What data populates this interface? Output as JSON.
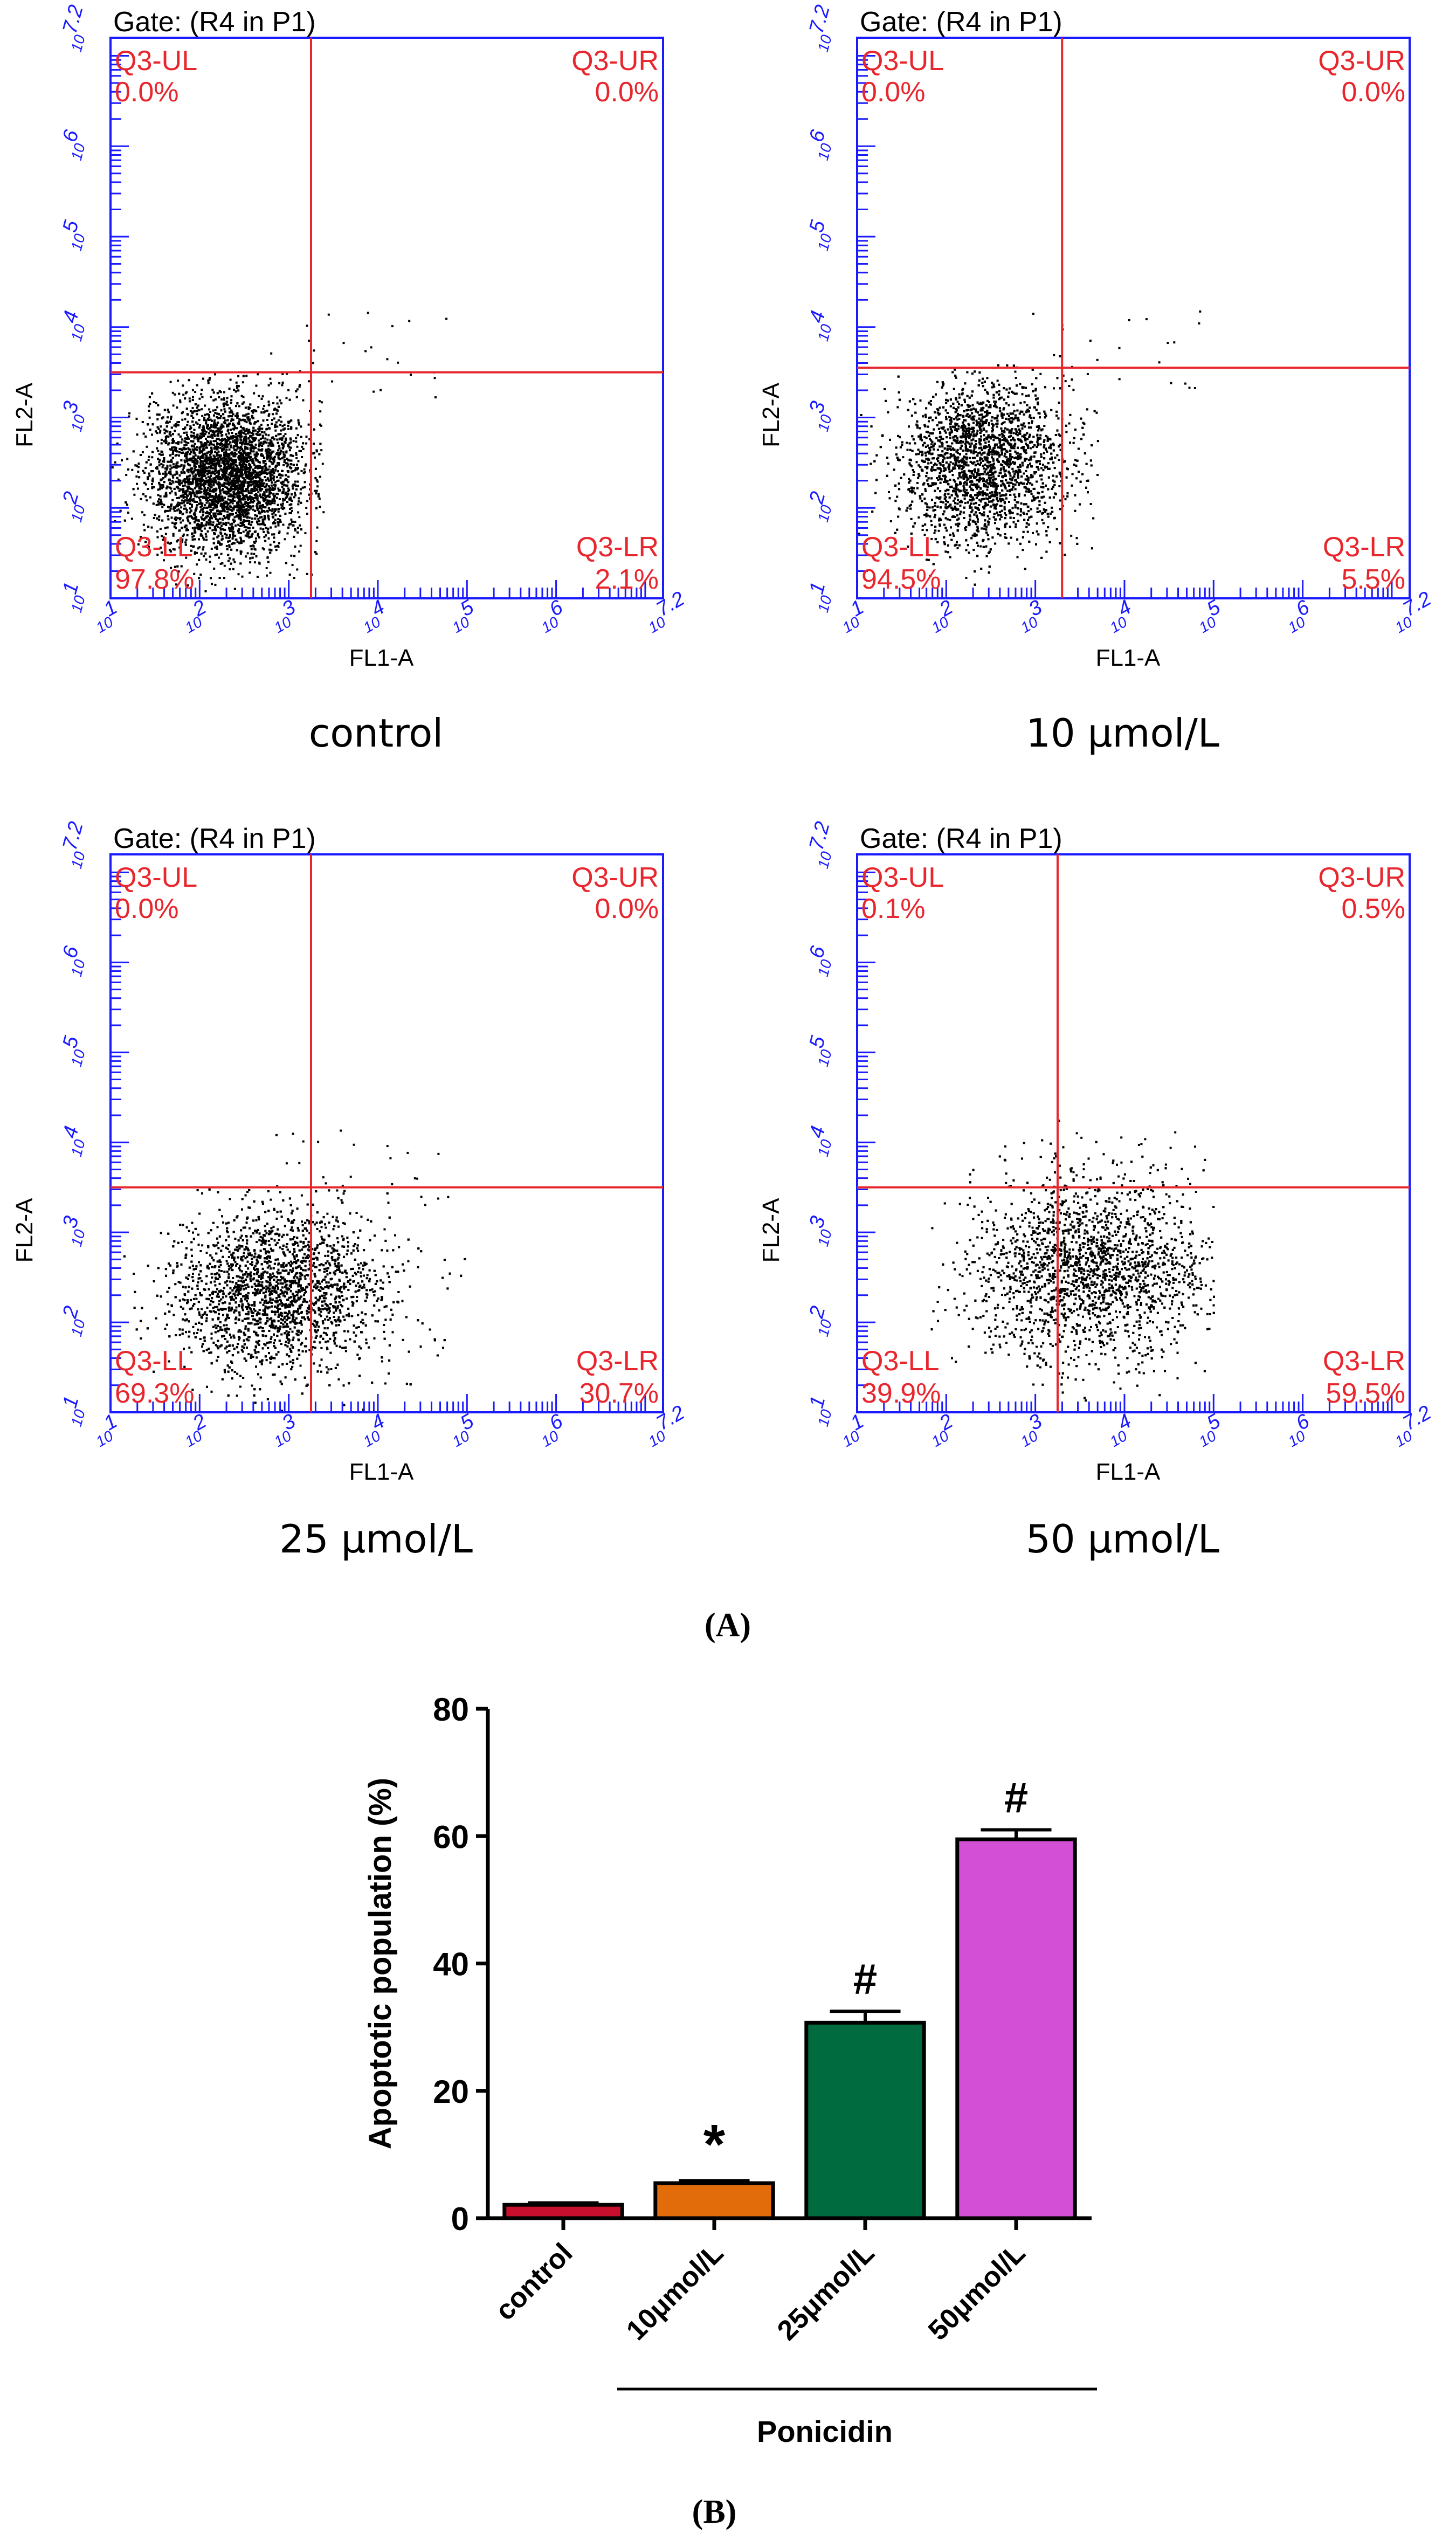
{
  "panel_a_label": "(A)",
  "panel_b_label": "(B)",
  "colors": {
    "flow_axis": "#1a1aff",
    "quadrant": "#e8262e",
    "text": "#000000",
    "bar_outline": "#000000"
  },
  "chart_data": [
    {
      "type": "scatter",
      "title": "Gate: (R4 in P1)",
      "caption": "control",
      "xlabel": "FL1-A",
      "ylabel": "FL2-A",
      "scale": "log10",
      "xlim": [
        1,
        7.2
      ],
      "ylim": [
        1,
        7.2
      ],
      "x_ticks": [
        "1",
        "2",
        "3",
        "4",
        "5",
        "6",
        "7.2"
      ],
      "y_ticks": [
        "1",
        "2",
        "3",
        "4",
        "5",
        "6",
        "7.2"
      ],
      "tick_base": "10",
      "quadrant_gate": {
        "x": 3.25,
        "y": 3.5
      },
      "quadrants": [
        {
          "name": "Q3-UL",
          "percent": "0.0%"
        },
        {
          "name": "Q3-UR",
          "percent": "0.0%"
        },
        {
          "name": "Q3-LL",
          "percent": "97.8%"
        },
        {
          "name": "Q3-LR",
          "percent": "2.1%"
        }
      ],
      "cluster": {
        "x_center": 2.3,
        "y_center": 2.35,
        "x_spread": 0.42,
        "y_spread": 0.42,
        "x_min": 1.0,
        "x_max": 3.4,
        "y_min": 1.0,
        "y_max": 3.5,
        "density": 1.0,
        "tail": 0.02
      }
    },
    {
      "type": "scatter",
      "title": "Gate: (R4 in P1)",
      "caption": "10 µmol/L",
      "xlabel": "FL1-A",
      "ylabel": "FL2-A",
      "scale": "log10",
      "xlim": [
        1,
        7.2
      ],
      "ylim": [
        1,
        7.2
      ],
      "x_ticks": [
        "1",
        "2",
        "3",
        "4",
        "5",
        "6",
        "7.2"
      ],
      "y_ticks": [
        "1",
        "2",
        "3",
        "4",
        "5",
        "6",
        "7.2"
      ],
      "tick_base": "10",
      "quadrant_gate": {
        "x": 3.3,
        "y": 3.55
      },
      "quadrants": [
        {
          "name": "Q3-UL",
          "percent": "0.0%"
        },
        {
          "name": "Q3-UR",
          "percent": "0.0%"
        },
        {
          "name": "Q3-LL",
          "percent": "94.5%"
        },
        {
          "name": "Q3-LR",
          "percent": "5.5%"
        }
      ],
      "cluster": {
        "x_center": 2.4,
        "y_center": 2.5,
        "x_spread": 0.45,
        "y_spread": 0.45,
        "x_min": 1.0,
        "x_max": 3.7,
        "y_min": 1.0,
        "y_max": 3.6,
        "density": 1.0,
        "tail": 0.05
      }
    },
    {
      "type": "scatter",
      "title": "Gate: (R4 in P1)",
      "caption": "25 µmol/L",
      "xlabel": "FL1-A",
      "ylabel": "FL2-A",
      "scale": "log10",
      "xlim": [
        1,
        7.2
      ],
      "ylim": [
        1,
        7.2
      ],
      "x_ticks": [
        "1",
        "2",
        "3",
        "4",
        "5",
        "6",
        "7.2"
      ],
      "y_ticks": [
        "1",
        "2",
        "3",
        "4",
        "5",
        "6",
        "7.2"
      ],
      "tick_base": "10",
      "quadrant_gate": {
        "x": 3.25,
        "y": 3.5
      },
      "quadrants": [
        {
          "name": "Q3-UL",
          "percent": "0.0%"
        },
        {
          "name": "Q3-UR",
          "percent": "0.0%"
        },
        {
          "name": "Q3-LL",
          "percent": "69.3%"
        },
        {
          "name": "Q3-LR",
          "percent": "30.7%"
        }
      ],
      "cluster": {
        "x_center": 2.8,
        "y_center": 2.35,
        "x_spread": 0.55,
        "y_spread": 0.45,
        "x_min": 1.0,
        "x_max": 5.0,
        "y_min": 1.0,
        "y_max": 3.6,
        "density": 1.0,
        "tail": 0.15
      }
    },
    {
      "type": "scatter",
      "title": "Gate: (R4 in P1)",
      "caption": "50 µmol/L",
      "xlabel": "FL1-A",
      "ylabel": "FL2-A",
      "scale": "log10",
      "xlim": [
        1,
        7.2
      ],
      "ylim": [
        1,
        7.2
      ],
      "x_ticks": [
        "1",
        "2",
        "3",
        "4",
        "5",
        "6",
        "7.2"
      ],
      "y_ticks": [
        "1",
        "2",
        "3",
        "4",
        "5",
        "6",
        "7.2"
      ],
      "tick_base": "10",
      "quadrant_gate": {
        "x": 3.25,
        "y": 3.5
      },
      "quadrants": [
        {
          "name": "Q3-UL",
          "percent": "0.1%"
        },
        {
          "name": "Q3-UR",
          "percent": "0.5%"
        },
        {
          "name": "Q3-LL",
          "percent": "39.9%"
        },
        {
          "name": "Q3-LR",
          "percent": "59.5%"
        }
      ],
      "cluster": {
        "x_center": 3.5,
        "y_center": 2.6,
        "x_spread": 0.6,
        "y_spread": 0.5,
        "x_min": 1.0,
        "x_max": 5.0,
        "y_min": 1.0,
        "y_max": 4.3,
        "density": 0.85,
        "tail": 0.2
      }
    },
    {
      "type": "bar",
      "title": "",
      "ylabel": "Apoptotic population (%)",
      "xlabel": "",
      "ylim": [
        0,
        80
      ],
      "y_ticks": [
        0,
        20,
        40,
        60,
        80
      ],
      "categories": [
        "control",
        "10μmol/L",
        "25μmol/L",
        "50μmol/L"
      ],
      "values": [
        2.1,
        5.5,
        30.7,
        59.5
      ],
      "errors": [
        0.3,
        0.4,
        1.8,
        1.5
      ],
      "bar_colors": [
        "#c8102e",
        "#e36c0a",
        "#006b3f",
        "#d24fd6"
      ],
      "annotations": [
        "",
        "*",
        "#",
        "#"
      ],
      "group_label": "Ponicidin",
      "grouped_categories": [
        "10μmol/L",
        "25μmol/L",
        "50μmol/L"
      ]
    }
  ]
}
